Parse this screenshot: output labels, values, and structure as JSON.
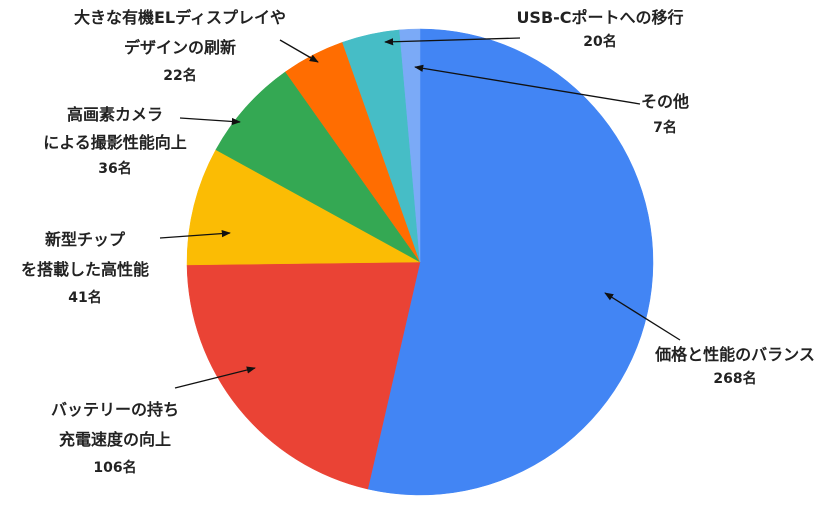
{
  "chart_data": {
    "type": "pie",
    "categories": [
      "価格と性能のバランス",
      "バッテリーの持ち\n充電速度の向上",
      "新型チップ\nを搭載した高性能",
      "高画素カメラ\nによる撮影性能向上",
      "大きな有機ELディスプレイや\nデザインの刷新",
      "USB-Cポートへの移行",
      "その他"
    ],
    "values": [
      268,
      106,
      41,
      36,
      22,
      20,
      7
    ],
    "value_labels": [
      "268名",
      "106名",
      "41名",
      "36名",
      "22名",
      "20名",
      "7名"
    ],
    "colors": [
      "#4285f4",
      "#ea4335",
      "#fbbc04",
      "#34a853",
      "#ff6d01",
      "#46bdc6",
      "#7baaf7"
    ]
  }
}
